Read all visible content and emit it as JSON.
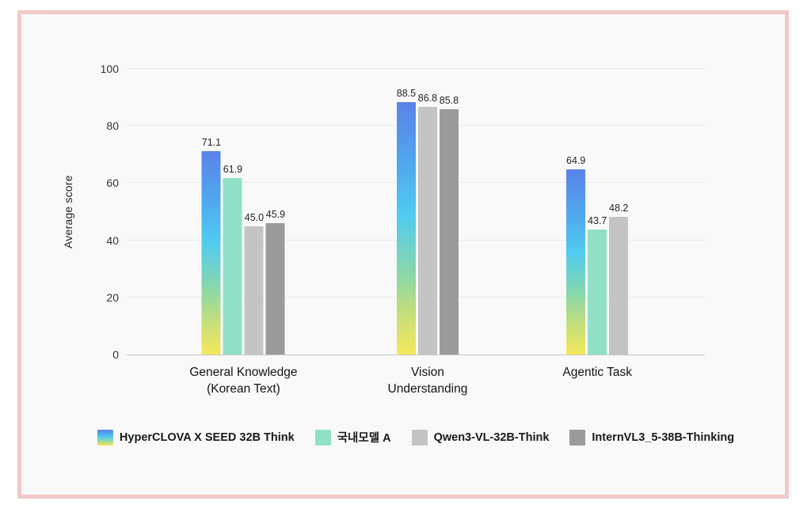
{
  "frame": {
    "border_color": "#F3C8C8",
    "card_background": "#FAF9F9",
    "page_background": "#FFFFFF"
  },
  "chart_data": {
    "type": "bar",
    "title": "",
    "ylabel": "Average score",
    "xlabel": "",
    "ylim": [
      0,
      100
    ],
    "yticks": [
      0,
      20,
      40,
      60,
      80,
      100
    ],
    "grid": "horizontal",
    "legend_position": "bottom",
    "categories": [
      "General Knowledge (Korean Text)",
      "Vision Understanding",
      "Agentic Task"
    ],
    "category_lines": [
      [
        "General Knowledge",
        "(Korean Text)"
      ],
      [
        "Vision",
        "Understanding"
      ],
      [
        "Agentic Task"
      ]
    ],
    "group_centers_pct": [
      20.2,
      52.05,
      81.4
    ],
    "colors": {
      "gridline": "#E9E9E9",
      "axis_line": "#C6C6C6",
      "tick_text": "#333333",
      "value_text": "#242424"
    },
    "series": [
      {
        "name": "HyperCLOVA X SEED 32B Think",
        "color_type": "gradient",
        "gradient": [
          "#5B82E9",
          "#4FA9EE",
          "#51CBF1",
          "#8AD8A9",
          "#C2DE7C",
          "#F6E85C"
        ],
        "values": [
          71.1,
          88.5,
          64.9
        ],
        "labels": [
          "71.1",
          "88.5",
          "64.9"
        ]
      },
      {
        "name": "국내모델 A",
        "color_type": "solid",
        "color": "#90E1C7",
        "values": [
          61.9,
          null,
          43.7
        ],
        "labels": [
          "61.9",
          null,
          "43.7"
        ]
      },
      {
        "name": "Qwen3-VL-32B-Think",
        "color_type": "solid",
        "color": "#C4C4C4",
        "values": [
          45.0,
          86.8,
          48.2
        ],
        "labels": [
          "45.0",
          "86.8",
          "48.2"
        ]
      },
      {
        "name": "InternVL3_5-38B-Thinking",
        "color_type": "solid",
        "color": "#9B9B9B",
        "values": [
          45.9,
          85.8,
          null
        ],
        "labels": [
          "45.9",
          "85.8",
          null
        ]
      }
    ]
  }
}
